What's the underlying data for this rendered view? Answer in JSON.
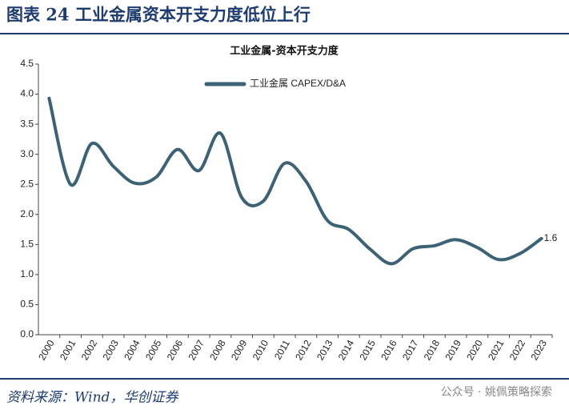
{
  "header": {
    "title": "图表 24  工业金属资本开支力度低位上行"
  },
  "chart_data": {
    "type": "line",
    "title": "工业金属-资本开支力度",
    "categories": [
      "2000",
      "2001",
      "2002",
      "2003",
      "2004",
      "2005",
      "2006",
      "2007",
      "2008",
      "2009",
      "2010",
      "2011",
      "2012",
      "2013",
      "2014",
      "2015",
      "2016",
      "2017",
      "2018",
      "2019",
      "2020",
      "2021",
      "2022",
      "2023"
    ],
    "series": [
      {
        "name": "工业金属 CAPEX/D&A",
        "color": "#3d6276",
        "values": [
          3.93,
          2.5,
          3.18,
          2.8,
          2.52,
          2.62,
          3.08,
          2.73,
          3.35,
          2.28,
          2.22,
          2.85,
          2.55,
          1.9,
          1.75,
          1.42,
          1.18,
          1.43,
          1.48,
          1.58,
          1.45,
          1.25,
          1.35,
          1.6
        ]
      }
    ],
    "ylim": [
      0,
      4.5
    ],
    "yticks": [
      {
        "value": 0,
        "label": "0.0"
      },
      0.5,
      {
        "value": 1,
        "label": "1.0"
      },
      1.5,
      {
        "value": 2,
        "label": "2.0"
      },
      2.5,
      {
        "value": 3,
        "label": "3.0"
      },
      3.5,
      {
        "value": 4,
        "label": "4.0"
      },
      4.5
    ],
    "legend": "top"
  },
  "footer": {
    "source": "资料来源：Wind，华创证券",
    "watermark": "公众号 · 姚佩策略探索"
  }
}
